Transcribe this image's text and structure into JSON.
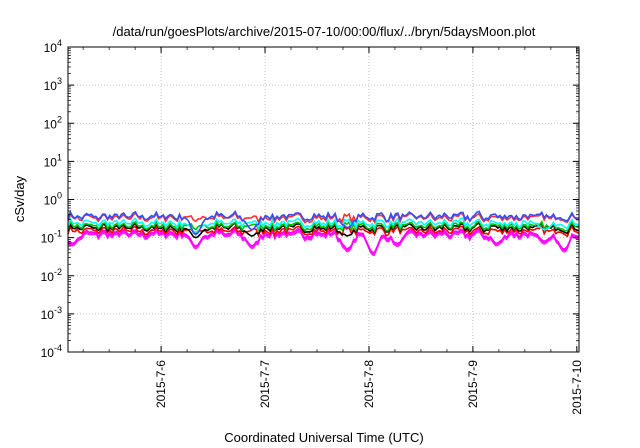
{
  "chart_data": {
    "type": "line",
    "title": "/data/run/goesPlots/archive/2015-07-10/00:00/flux/../bryn/5daysMoon.plot",
    "xlabel": "Coordinated Universal Time (UTC)",
    "ylabel": "cSv/day",
    "y_scale": "log",
    "ylim": [
      0.0001,
      10000
    ],
    "y_ticks": [
      {
        "base": "10",
        "exp": "-4"
      },
      {
        "base": "10",
        "exp": "-3"
      },
      {
        "base": "10",
        "exp": "-2"
      },
      {
        "base": "10",
        "exp": "-1"
      },
      {
        "base": "10",
        "exp": "0"
      },
      {
        "base": "10",
        "exp": "1"
      },
      {
        "base": "10",
        "exp": "2"
      },
      {
        "base": "10",
        "exp": "3"
      },
      {
        "base": "10",
        "exp": "4"
      }
    ],
    "xlim": [
      "2015-07-05T02:30",
      "2015-07-10T00:30"
    ],
    "x_ticks": [
      {
        "label": "2015-7-6",
        "value": "2015-07-06T00:00"
      },
      {
        "label": "2015-7-7",
        "value": "2015-07-07T00:00"
      },
      {
        "label": "2015-7-8",
        "value": "2015-07-08T00:00"
      },
      {
        "label": "2015-7-9",
        "value": "2015-07-09T00:00"
      },
      {
        "label": "2015-7-10",
        "value": "2015-07-10T00:00"
      }
    ],
    "grid": true,
    "series": [
      {
        "color": "#ff00ff",
        "fill": true,
        "base": 0.13,
        "dips": [
          {
            "t": "2015-07-05T03:30",
            "v": 0.07
          },
          {
            "t": "2015-07-06T08:00",
            "v": 0.06
          },
          {
            "t": "2015-07-06T21:00",
            "v": 0.06
          },
          {
            "t": "2015-07-07T19:00",
            "v": 0.05
          },
          {
            "t": "2015-07-08T01:00",
            "v": 0.04
          },
          {
            "t": "2015-07-08T06:30",
            "v": 0.07
          },
          {
            "t": "2015-07-09T05:30",
            "v": 0.07
          },
          {
            "t": "2015-07-09T16:30",
            "v": 0.08
          },
          {
            "t": "2015-07-09T21:00",
            "v": 0.05
          }
        ]
      },
      {
        "color": "#ff0000",
        "base": 0.15,
        "dips": []
      },
      {
        "color": "#000000",
        "base": 0.18,
        "dips": [
          {
            "t": "2015-07-06T08:00",
            "v": 0.1
          },
          {
            "t": "2015-07-06T21:00",
            "v": 0.11
          },
          {
            "t": "2015-07-07T19:00",
            "v": 0.11
          }
        ]
      },
      {
        "color": "#00c000",
        "base": 0.2,
        "dips": []
      },
      {
        "color": "#00ffff",
        "base": 0.24,
        "dips": [
          {
            "t": "2015-07-06T08:00",
            "v": 0.14
          },
          {
            "t": "2015-07-09T16:30",
            "v": 0.16
          }
        ]
      },
      {
        "color": "#ff3030",
        "base": 0.33,
        "dips": []
      },
      {
        "color": "#3050ff",
        "base": 0.36,
        "dips": [
          {
            "t": "2015-07-06T08:00",
            "v": 0.12
          },
          {
            "t": "2015-07-06T21:00",
            "v": 0.16
          },
          {
            "t": "2015-07-07T19:00",
            "v": 0.18
          }
        ]
      }
    ]
  }
}
